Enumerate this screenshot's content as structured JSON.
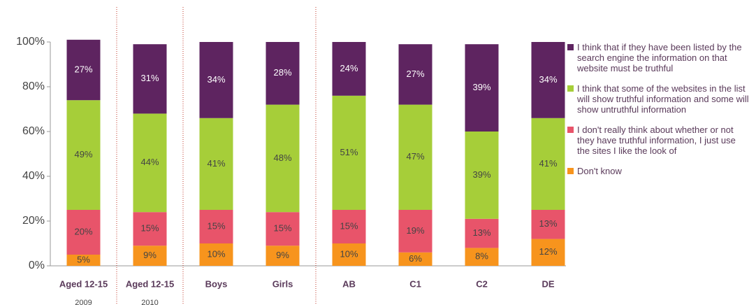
{
  "chart_data": {
    "type": "stacked_bar",
    "categories": [
      "Aged 12-15",
      "Aged 12-15",
      "Boys",
      "Girls",
      "AB",
      "C1",
      "C2",
      "DE"
    ],
    "category_years": [
      "2009",
      "2010",
      null,
      null,
      null,
      null,
      null,
      null
    ],
    "series": [
      {
        "name": "Don't know",
        "color": "#f7941d",
        "values": [
          5,
          9,
          10,
          9,
          10,
          6,
          8,
          12
        ],
        "value_labels": [
          "5%",
          "9%",
          "10%",
          "9%",
          "10%",
          "6%",
          "8%",
          "12%"
        ]
      },
      {
        "name": "I don't really think about whether or not they have truthful information, I just use the sites I like the look of",
        "color": "#e8546a",
        "values": [
          20,
          15,
          15,
          15,
          15,
          19,
          13,
          13
        ],
        "value_labels": [
          "20%",
          "15%",
          "15%",
          "15%",
          "15%",
          "19%",
          "13%",
          "13%"
        ]
      },
      {
        "name": "I think that some of the websites in the list will show truthful information and some will show untruthful information",
        "color": "#a6ce39",
        "values": [
          49,
          44,
          41,
          48,
          51,
          47,
          39,
          41
        ],
        "value_labels": [
          "49%",
          "44%",
          "41%",
          "48%",
          "51%",
          "47%",
          "39%",
          "41%"
        ]
      },
      {
        "name": "I think that if they have been listed by the search engine the information on that website must be truthful",
        "color": "#5e2460",
        "values": [
          27,
          31,
          34,
          28,
          24,
          27,
          39,
          34
        ],
        "value_labels": [
          "27%",
          "31%",
          "34%",
          "28%",
          "24%",
          "27%",
          "39%",
          "34%"
        ]
      }
    ],
    "ylim": [
      0,
      100
    ],
    "yticks": [
      {
        "value": 0,
        "label": "0%"
      },
      {
        "value": 20,
        "label": "20%"
      },
      {
        "value": 40,
        "label": "40%"
      },
      {
        "value": 60,
        "label": "60%"
      },
      {
        "value": 80,
        "label": "80%"
      },
      {
        "value": 100,
        "label": "100%"
      }
    ]
  }
}
